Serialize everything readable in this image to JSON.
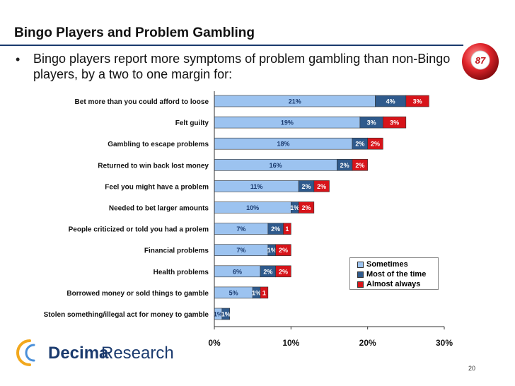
{
  "slide": {
    "title": "Bingo Players and Problem Gambling",
    "bullet": "Bingo players report more symptoms of problem gambling than non-Bingo players, by a two to one margin for:",
    "page_number": "20",
    "logo": {
      "word1": "Decima",
      "word2": "Research"
    },
    "bingo_ball": {
      "number": "87",
      "icon": "bingo-ball-icon"
    }
  },
  "chart_data": {
    "type": "bar",
    "orientation": "horizontal",
    "stacked": true,
    "categories": [
      "Bet more than you could afford to loose",
      "Felt guilty",
      "Gambling to escape problems",
      "Returned to win back lost money",
      "Feel you might have a problem",
      "Needed to bet larger amounts",
      "People criticized or told you had a prolem",
      "Financial problems",
      "Health problems",
      "Borrowed money or sold things to gamble",
      "Stolen something/illegal act for money to gamble"
    ],
    "series": [
      {
        "name": "Sometimes",
        "color": "#9cc3f0",
        "values": [
          21,
          19,
          18,
          16,
          11,
          10,
          7,
          7,
          6,
          5,
          1
        ],
        "labels": [
          "21%",
          "19%",
          "18%",
          "16%",
          "11%",
          "10%",
          "7%",
          "7%",
          "6%",
          "5%",
          "1%"
        ]
      },
      {
        "name": "Most of the time",
        "color": "#2f5a8c",
        "values": [
          4,
          3,
          2,
          2,
          2,
          1,
          2,
          1,
          2,
          1,
          1
        ],
        "labels": [
          "4%",
          "3%",
          "2%",
          "2%",
          "2%",
          "1%",
          "2%",
          "1%",
          "2%",
          "1%",
          "1%"
        ]
      },
      {
        "name": "Almost always",
        "color": "#d7141a",
        "values": [
          3,
          3,
          2,
          2,
          2,
          2,
          1,
          2,
          2,
          1,
          0
        ],
        "labels": [
          "3%",
          "3%",
          "2%",
          "2%",
          "2%",
          "2%",
          "1",
          "2%",
          "2%",
          "1",
          ""
        ]
      }
    ],
    "xlim": [
      0,
      30
    ],
    "x_ticks": [
      "0%",
      "10%",
      "20%",
      "30%"
    ],
    "legend_position": "bottom-right-inside",
    "grid": false
  }
}
